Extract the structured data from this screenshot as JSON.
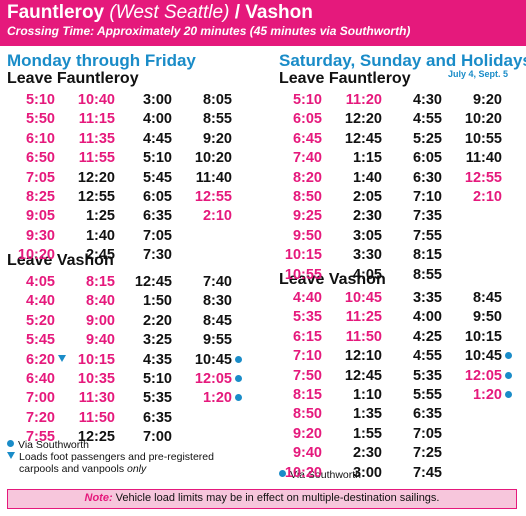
{
  "header": {
    "title_main": "Fauntleroy",
    "title_paren": "(West Seattle)",
    "title_sep": "/",
    "title_dest": "Vashon",
    "subtitle": "Crossing Time:  Approximately 20 minutes (45 minutes via Southworth)"
  },
  "weekday": {
    "title": "Monday through Friday",
    "fauntleroy": {
      "label": "Leave Fauntleroy",
      "columns": [
        [
          [
            "5:10",
            "am"
          ],
          [
            "5:50",
            "am"
          ],
          [
            "6:10",
            "am"
          ],
          [
            "6:50",
            "am"
          ],
          [
            "7:05",
            "am"
          ],
          [
            "8:25",
            "am"
          ],
          [
            "9:05",
            "am"
          ],
          [
            "9:30",
            "am"
          ],
          [
            "10:20",
            "am"
          ]
        ],
        [
          [
            "10:40",
            "am"
          ],
          [
            "11:15",
            "am"
          ],
          [
            "11:35",
            "am"
          ],
          [
            "11:55",
            "am"
          ],
          [
            "12:20",
            "pm"
          ],
          [
            "12:55",
            "pm"
          ],
          [
            "1:25",
            "pm"
          ],
          [
            "1:40",
            "pm"
          ],
          [
            "2:45",
            "pm"
          ]
        ],
        [
          [
            "3:00",
            "pm"
          ],
          [
            "4:00",
            "pm"
          ],
          [
            "4:45",
            "pm"
          ],
          [
            "5:10",
            "pm"
          ],
          [
            "5:45",
            "pm"
          ],
          [
            "6:05",
            "pm"
          ],
          [
            "6:35",
            "pm"
          ],
          [
            "7:05",
            "pm"
          ],
          [
            "7:30",
            "pm"
          ]
        ],
        [
          [
            "8:05",
            "pm"
          ],
          [
            "8:55",
            "pm"
          ],
          [
            "9:20",
            "pm"
          ],
          [
            "10:20",
            "pm"
          ],
          [
            "11:40",
            "pm"
          ],
          [
            "12:55",
            "am"
          ],
          [
            "2:10",
            "am"
          ]
        ]
      ]
    },
    "vashon": {
      "label": "Leave Vashon",
      "columns": [
        [
          [
            "4:05",
            "am"
          ],
          [
            "4:40",
            "am"
          ],
          [
            "5:20",
            "am"
          ],
          [
            "5:45",
            "am"
          ],
          [
            "6:20",
            "am",
            "tri"
          ],
          [
            "6:40",
            "am"
          ],
          [
            "7:00",
            "am"
          ],
          [
            "7:20",
            "am"
          ],
          [
            "7:55",
            "am"
          ]
        ],
        [
          [
            "8:15",
            "am"
          ],
          [
            "8:40",
            "am"
          ],
          [
            "9:00",
            "am"
          ],
          [
            "9:40",
            "am"
          ],
          [
            "10:15",
            "am"
          ],
          [
            "10:35",
            "am"
          ],
          [
            "11:30",
            "am"
          ],
          [
            "11:50",
            "am"
          ],
          [
            "12:25",
            "pm"
          ]
        ],
        [
          [
            "12:45",
            "pm"
          ],
          [
            "1:50",
            "pm"
          ],
          [
            "2:20",
            "pm"
          ],
          [
            "3:25",
            "pm"
          ],
          [
            "4:35",
            "pm"
          ],
          [
            "5:10",
            "pm"
          ],
          [
            "5:35",
            "pm"
          ],
          [
            "6:35",
            "pm"
          ],
          [
            "7:00",
            "pm"
          ]
        ],
        [
          [
            "7:40",
            "pm"
          ],
          [
            "8:30",
            "pm"
          ],
          [
            "8:45",
            "pm"
          ],
          [
            "9:55",
            "pm"
          ],
          [
            "10:45",
            "pm",
            "dot"
          ],
          [
            "12:05",
            "am",
            "dot"
          ],
          [
            "1:20",
            "am",
            "dot"
          ]
        ]
      ]
    },
    "legend": {
      "southworth": "Via Southworth",
      "foot_line1": "Loads foot passengers and pre-registered",
      "foot_line2": "carpools and vanpools ",
      "foot_only": "only"
    }
  },
  "weekend": {
    "title": "Saturday, Sunday and Holidays",
    "holidays": "July 4, Sept. 5",
    "fauntleroy": {
      "label": "Leave Fauntleroy",
      "columns": [
        [
          [
            "5:10",
            "am"
          ],
          [
            "6:05",
            "am"
          ],
          [
            "6:45",
            "am"
          ],
          [
            "7:40",
            "am"
          ],
          [
            "8:20",
            "am"
          ],
          [
            "8:50",
            "am"
          ],
          [
            "9:25",
            "am"
          ],
          [
            "9:50",
            "am"
          ],
          [
            "10:15",
            "am"
          ],
          [
            "10:55",
            "am"
          ]
        ],
        [
          [
            "11:20",
            "am"
          ],
          [
            "12:20",
            "pm"
          ],
          [
            "12:45",
            "pm"
          ],
          [
            "1:15",
            "pm"
          ],
          [
            "1:40",
            "pm"
          ],
          [
            "2:05",
            "pm"
          ],
          [
            "2:30",
            "pm"
          ],
          [
            "3:05",
            "pm"
          ],
          [
            "3:30",
            "pm"
          ],
          [
            "4:05",
            "pm"
          ]
        ],
        [
          [
            "4:30",
            "pm"
          ],
          [
            "4:55",
            "pm"
          ],
          [
            "5:25",
            "pm"
          ],
          [
            "6:05",
            "pm"
          ],
          [
            "6:30",
            "pm"
          ],
          [
            "7:10",
            "pm"
          ],
          [
            "7:35",
            "pm"
          ],
          [
            "7:55",
            "pm"
          ],
          [
            "8:15",
            "pm"
          ],
          [
            "8:55",
            "pm"
          ]
        ],
        [
          [
            "9:20",
            "pm"
          ],
          [
            "10:20",
            "pm"
          ],
          [
            "10:55",
            "pm"
          ],
          [
            "11:40",
            "pm"
          ],
          [
            "12:55",
            "am"
          ],
          [
            "2:10",
            "am"
          ]
        ]
      ]
    },
    "vashon": {
      "label": "Leave Vashon",
      "columns": [
        [
          [
            "4:40",
            "am"
          ],
          [
            "5:35",
            "am"
          ],
          [
            "6:15",
            "am"
          ],
          [
            "7:10",
            "am"
          ],
          [
            "7:50",
            "am"
          ],
          [
            "8:15",
            "am"
          ],
          [
            "8:50",
            "am"
          ],
          [
            "9:20",
            "am"
          ],
          [
            "9:40",
            "am"
          ],
          [
            "10:20",
            "am"
          ]
        ],
        [
          [
            "10:45",
            "am"
          ],
          [
            "11:25",
            "am"
          ],
          [
            "11:50",
            "am"
          ],
          [
            "12:10",
            "pm"
          ],
          [
            "12:45",
            "pm"
          ],
          [
            "1:10",
            "pm"
          ],
          [
            "1:35",
            "pm"
          ],
          [
            "1:55",
            "pm"
          ],
          [
            "2:30",
            "pm"
          ],
          [
            "3:00",
            "pm"
          ]
        ],
        [
          [
            "3:35",
            "pm"
          ],
          [
            "4:00",
            "pm"
          ],
          [
            "4:25",
            "pm"
          ],
          [
            "4:55",
            "pm"
          ],
          [
            "5:35",
            "pm"
          ],
          [
            "5:55",
            "pm"
          ],
          [
            "6:35",
            "pm"
          ],
          [
            "7:05",
            "pm"
          ],
          [
            "7:25",
            "pm"
          ],
          [
            "7:45",
            "pm"
          ]
        ],
        [
          [
            "8:45",
            "pm"
          ],
          [
            "9:50",
            "pm"
          ],
          [
            "10:15",
            "pm"
          ],
          [
            "10:45",
            "pm",
            "dot"
          ],
          [
            "12:05",
            "am",
            "dot"
          ],
          [
            "1:20",
            "am",
            "dot"
          ]
        ]
      ]
    },
    "legend": {
      "southworth": "Via Southworth"
    }
  },
  "note": {
    "label": "Note:",
    "text": "Vehicle load limits may be in effect on multiple-destination sailings."
  }
}
